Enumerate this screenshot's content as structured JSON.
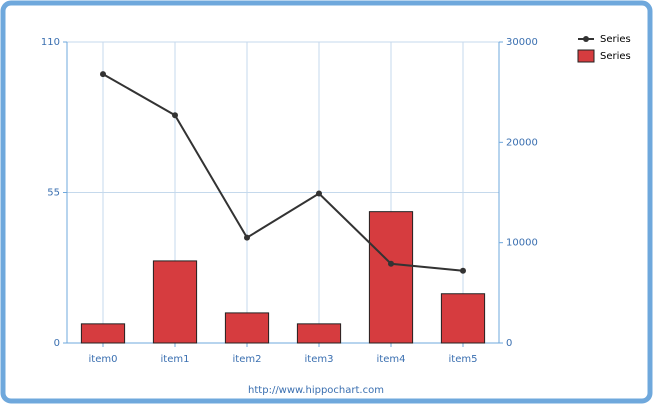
{
  "chart_data": {
    "type": "bar-line",
    "categories": [
      "item0",
      "item1",
      "item2",
      "item3",
      "item4",
      "item5"
    ],
    "series": [
      {
        "name": "Series",
        "type": "bar",
        "color": "#d63c3f",
        "values": [
          7,
          30,
          11,
          7,
          48,
          18
        ]
      },
      {
        "name": "Series",
        "type": "line",
        "color": "#333333",
        "axis": "y2",
        "values": [
          26800,
          22700,
          10500,
          14900,
          7900,
          7200
        ]
      }
    ],
    "ylim": [
      0,
      110
    ],
    "yticks": [
      0,
      55,
      110
    ],
    "y2lim": [
      0,
      30000
    ],
    "y2ticks": [
      0,
      10000,
      20000,
      30000
    ],
    "grid": true,
    "footer": "http://www.hippochart.com"
  }
}
